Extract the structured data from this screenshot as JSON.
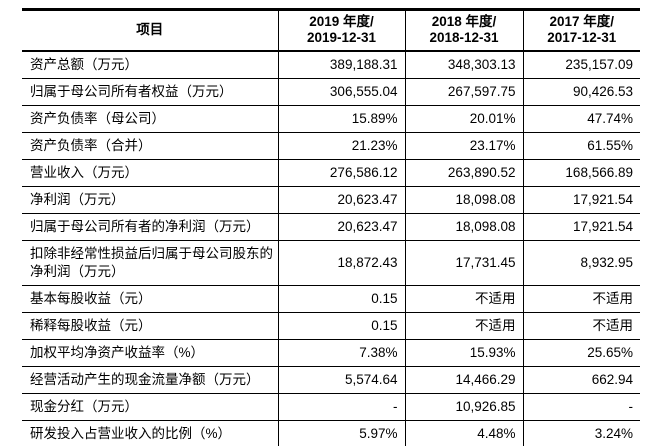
{
  "table": {
    "header": {
      "item_label": "项目",
      "periods": [
        {
          "line1": "2019 年度/",
          "line2": "2019-12-31"
        },
        {
          "line1": "2018 年度/",
          "line2": "2018-12-31"
        },
        {
          "line1": "2017 年度/",
          "line2": "2017-12-31"
        }
      ]
    },
    "rows": [
      {
        "label": "资产总额（万元）",
        "values": [
          "389,188.31",
          "348,303.13",
          "235,157.09"
        ]
      },
      {
        "label": "归属于母公司所有者权益（万元）",
        "values": [
          "306,555.04",
          "267,597.75",
          "90,426.53"
        ]
      },
      {
        "label": "资产负债率（母公司）",
        "values": [
          "15.89%",
          "20.01%",
          "47.74%"
        ]
      },
      {
        "label": "资产负债率（合并）",
        "values": [
          "21.23%",
          "23.17%",
          "61.55%"
        ]
      },
      {
        "label": "营业收入（万元）",
        "values": [
          "276,586.12",
          "263,890.52",
          "168,566.89"
        ]
      },
      {
        "label": "净利润（万元）",
        "values": [
          "20,623.47",
          "18,098.08",
          "17,921.54"
        ]
      },
      {
        "label": "归属于母公司所有者的净利润（万元）",
        "values": [
          "20,623.47",
          "18,098.08",
          "17,921.54"
        ]
      },
      {
        "label": "扣除非经常性损益后归属于母公司股东的净利润（万元）",
        "values": [
          "18,872.43",
          "17,731.45",
          "8,932.95"
        ]
      },
      {
        "label": "基本每股收益（元）",
        "values": [
          "0.15",
          "不适用",
          "不适用"
        ]
      },
      {
        "label": "稀释每股收益（元）",
        "values": [
          "0.15",
          "不适用",
          "不适用"
        ]
      },
      {
        "label": "加权平均净资产收益率（%）",
        "values": [
          "7.38%",
          "15.93%",
          "25.65%"
        ]
      },
      {
        "label": "经营活动产生的现金流量净额（万元）",
        "values": [
          "5,574.64",
          "14,466.29",
          "662.94"
        ]
      },
      {
        "label": "现金分红（万元）",
        "values": [
          "-",
          "10,926.85",
          "-"
        ]
      },
      {
        "label": "研发投入占营业收入的比例（%）",
        "values": [
          "5.97%",
          "4.48%",
          "3.24%"
        ]
      }
    ]
  }
}
